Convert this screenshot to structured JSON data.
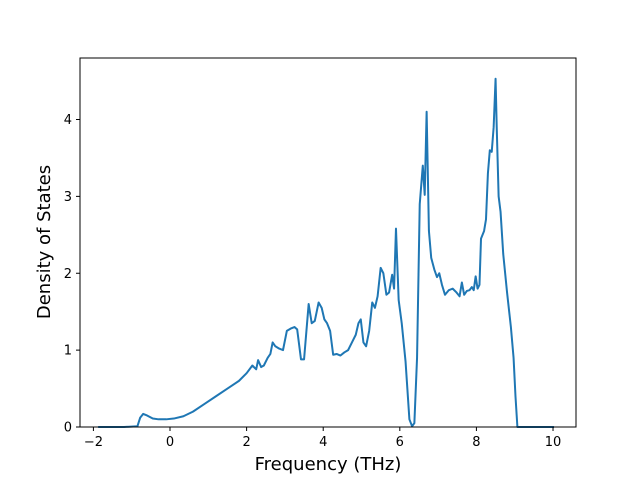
{
  "chart_data": {
    "type": "line",
    "title": "",
    "xlabel": "Frequency (THz)",
    "ylabel": "Density of States",
    "xlim": [
      -2.35,
      10.6
    ],
    "ylim": [
      0,
      4.8
    ],
    "xticks": [
      -2,
      0,
      2,
      4,
      6,
      8,
      10
    ],
    "yticks": [
      0,
      1,
      2,
      3,
      4
    ],
    "grid": false,
    "legend": "none",
    "series": [
      {
        "color": "#1f77b4",
        "points": [
          [
            -1.85,
            0.0
          ],
          [
            -1.2,
            0.0
          ],
          [
            -0.85,
            0.01
          ],
          [
            -0.78,
            0.12
          ],
          [
            -0.7,
            0.17
          ],
          [
            -0.6,
            0.15
          ],
          [
            -0.45,
            0.11
          ],
          [
            -0.3,
            0.1
          ],
          [
            -0.1,
            0.1
          ],
          [
            0.1,
            0.11
          ],
          [
            0.35,
            0.14
          ],
          [
            0.6,
            0.2
          ],
          [
            0.9,
            0.3
          ],
          [
            1.2,
            0.4
          ],
          [
            1.5,
            0.5
          ],
          [
            1.8,
            0.6
          ],
          [
            2.0,
            0.7
          ],
          [
            2.15,
            0.8
          ],
          [
            2.25,
            0.75
          ],
          [
            2.3,
            0.87
          ],
          [
            2.38,
            0.78
          ],
          [
            2.45,
            0.8
          ],
          [
            2.55,
            0.9
          ],
          [
            2.62,
            0.95
          ],
          [
            2.68,
            1.1
          ],
          [
            2.75,
            1.05
          ],
          [
            2.85,
            1.02
          ],
          [
            2.95,
            1.0
          ],
          [
            3.05,
            1.25
          ],
          [
            3.15,
            1.28
          ],
          [
            3.25,
            1.3
          ],
          [
            3.32,
            1.27
          ],
          [
            3.42,
            0.88
          ],
          [
            3.5,
            0.88
          ],
          [
            3.62,
            1.6
          ],
          [
            3.7,
            1.35
          ],
          [
            3.78,
            1.38
          ],
          [
            3.88,
            1.62
          ],
          [
            3.96,
            1.55
          ],
          [
            4.03,
            1.4
          ],
          [
            4.1,
            1.35
          ],
          [
            4.18,
            1.25
          ],
          [
            4.26,
            0.94
          ],
          [
            4.35,
            0.95
          ],
          [
            4.45,
            0.93
          ],
          [
            4.55,
            0.97
          ],
          [
            4.65,
            1.0
          ],
          [
            4.75,
            1.1
          ],
          [
            4.85,
            1.2
          ],
          [
            4.92,
            1.35
          ],
          [
            4.98,
            1.4
          ],
          [
            5.05,
            1.1
          ],
          [
            5.12,
            1.05
          ],
          [
            5.2,
            1.25
          ],
          [
            5.28,
            1.62
          ],
          [
            5.35,
            1.55
          ],
          [
            5.42,
            1.7
          ],
          [
            5.5,
            2.07
          ],
          [
            5.57,
            2.0
          ],
          [
            5.65,
            1.72
          ],
          [
            5.72,
            1.75
          ],
          [
            5.8,
            1.98
          ],
          [
            5.85,
            1.8
          ],
          [
            5.9,
            2.58
          ],
          [
            5.97,
            1.65
          ],
          [
            6.05,
            1.35
          ],
          [
            6.15,
            0.85
          ],
          [
            6.25,
            0.1
          ],
          [
            6.32,
            0.01
          ],
          [
            6.38,
            0.05
          ],
          [
            6.45,
            0.9
          ],
          [
            6.52,
            2.9
          ],
          [
            6.6,
            3.4
          ],
          [
            6.65,
            3.02
          ],
          [
            6.7,
            4.1
          ],
          [
            6.76,
            2.55
          ],
          [
            6.82,
            2.2
          ],
          [
            6.9,
            2.05
          ],
          [
            6.97,
            1.95
          ],
          [
            7.03,
            2.0
          ],
          [
            7.1,
            1.85
          ],
          [
            7.18,
            1.72
          ],
          [
            7.28,
            1.78
          ],
          [
            7.38,
            1.8
          ],
          [
            7.48,
            1.75
          ],
          [
            7.56,
            1.7
          ],
          [
            7.62,
            1.88
          ],
          [
            7.68,
            1.72
          ],
          [
            7.75,
            1.77
          ],
          [
            7.82,
            1.78
          ],
          [
            7.88,
            1.82
          ],
          [
            7.93,
            1.78
          ],
          [
            7.98,
            1.96
          ],
          [
            8.03,
            1.8
          ],
          [
            8.08,
            1.85
          ],
          [
            8.12,
            2.45
          ],
          [
            8.2,
            2.55
          ],
          [
            8.25,
            2.7
          ],
          [
            8.3,
            3.3
          ],
          [
            8.35,
            3.6
          ],
          [
            8.4,
            3.58
          ],
          [
            8.45,
            3.9
          ],
          [
            8.5,
            4.53
          ],
          [
            8.53,
            3.9
          ],
          [
            8.58,
            3.0
          ],
          [
            8.63,
            2.8
          ],
          [
            8.7,
            2.25
          ],
          [
            8.8,
            1.75
          ],
          [
            8.9,
            1.3
          ],
          [
            8.97,
            0.9
          ],
          [
            9.02,
            0.4
          ],
          [
            9.07,
            0.0
          ],
          [
            9.5,
            0.0
          ],
          [
            10.0,
            0.0
          ]
        ]
      }
    ]
  }
}
